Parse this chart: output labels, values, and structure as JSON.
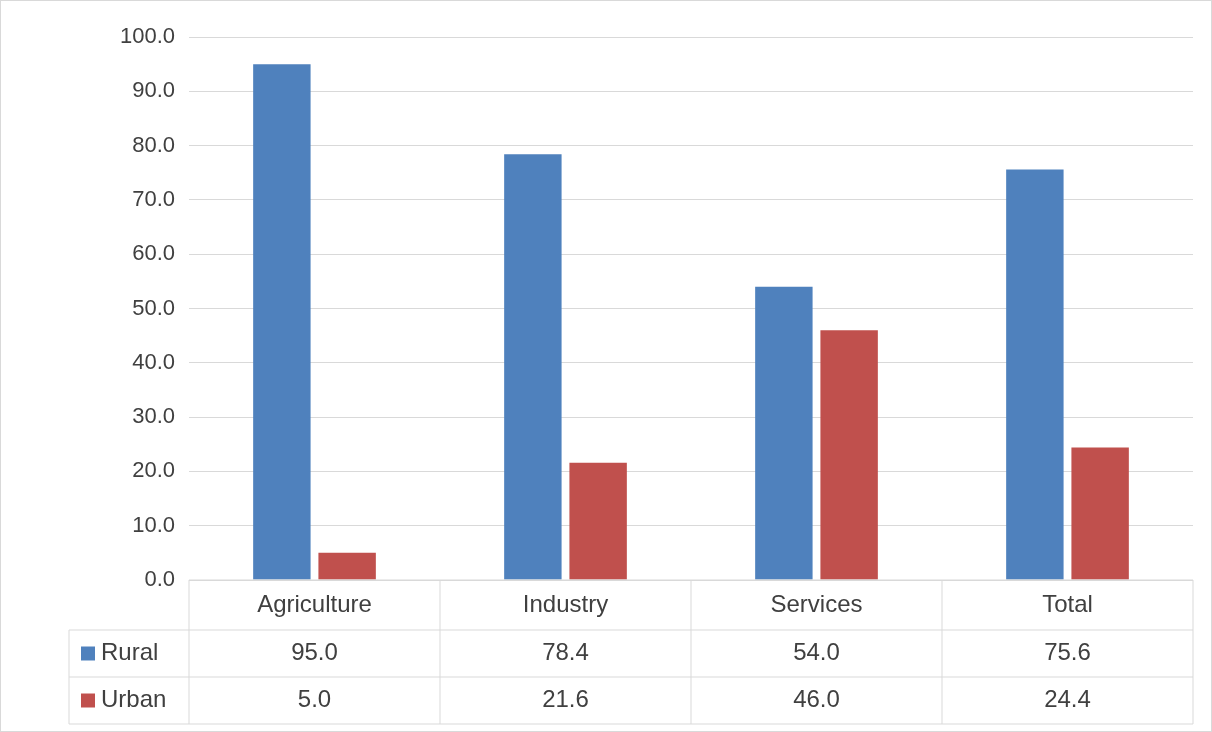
{
  "chart_data": {
    "type": "bar",
    "categories": [
      "Agriculture",
      "Industry",
      "Services",
      "Total"
    ],
    "series": [
      {
        "name": "Rural",
        "color": "#4f81bd",
        "values": [
          95.0,
          78.4,
          54.0,
          75.6
        ],
        "value_labels": [
          "95.0",
          "78.4",
          "54.0",
          "75.6"
        ]
      },
      {
        "name": "Urban",
        "color": "#c0504d",
        "values": [
          5.0,
          21.6,
          46.0,
          24.4
        ],
        "value_labels": [
          "5.0",
          "21.6",
          "46.0",
          "24.4"
        ]
      }
    ],
    "ylim": [
      0,
      100
    ],
    "yticks": [
      {
        "value": 0,
        "label": "0.0"
      },
      {
        "value": 10,
        "label": "10.0"
      },
      {
        "value": 20,
        "label": "20.0"
      },
      {
        "value": 30,
        "label": "30.0"
      },
      {
        "value": 40,
        "label": "40.0"
      },
      {
        "value": 50,
        "label": "50.0"
      },
      {
        "value": 60,
        "label": "60.0"
      },
      {
        "value": 70,
        "label": "70.0"
      },
      {
        "value": 80,
        "label": "80.0"
      },
      {
        "value": 90,
        "label": "90.0"
      },
      {
        "value": 100,
        "label": "100.0"
      }
    ],
    "grid": "y",
    "legend": "bottom"
  }
}
